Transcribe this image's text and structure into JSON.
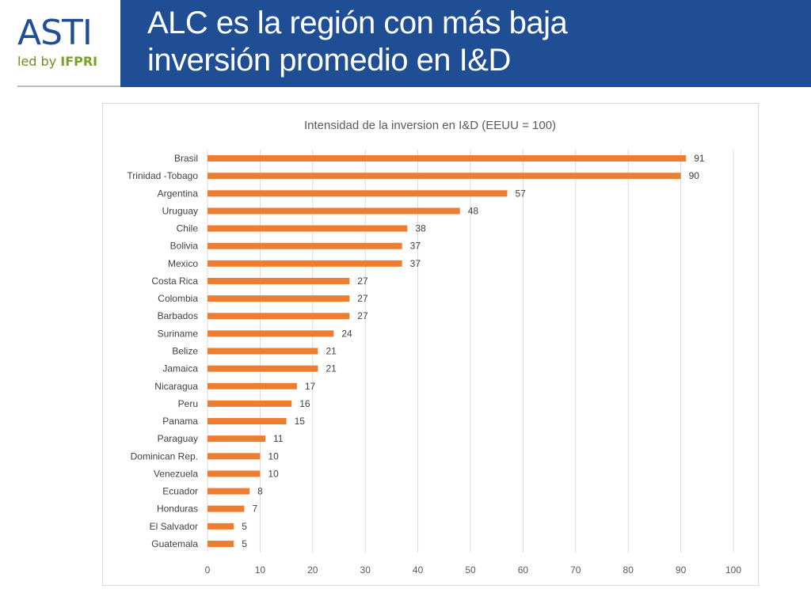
{
  "logo": {
    "main": "ASTI",
    "led_by": "led by ",
    "brand": "IFPRI"
  },
  "header": {
    "title_line1": "ALC es la región con más baja",
    "title_line2": "inversión promedio en I&D",
    "background": "#1f4e95"
  },
  "chart_data": {
    "type": "bar",
    "orientation": "horizontal",
    "title": "Intensidad de la inversion en I&D (EEUU = 100)",
    "categories": [
      "Brasil",
      "Trinidad -Tobago",
      "Argentina",
      "Uruguay",
      "Chile",
      "Bolivia",
      "Mexico",
      "Costa Rica",
      "Colombia",
      "Barbados",
      "Suriname",
      "Belize",
      "Jamaica",
      "Nicaragua",
      "Peru",
      "Panama",
      "Paraguay",
      "Dominican Rep.",
      "Venezuela",
      "Ecuador",
      "Honduras",
      "El Salvador",
      "Guatemala"
    ],
    "values": [
      91,
      90,
      57,
      48,
      38,
      37,
      37,
      27,
      27,
      27,
      24,
      21,
      21,
      17,
      16,
      15,
      11,
      10,
      10,
      8,
      7,
      5,
      5
    ],
    "data_labels": [
      "91",
      "90",
      "57",
      "48",
      "38",
      "37",
      "37",
      "27",
      "27",
      "27",
      "24",
      "21",
      "21",
      "17",
      "16",
      "15",
      "11",
      "10",
      "10",
      "8",
      "7",
      "5",
      "5"
    ],
    "xlim": [
      0,
      100
    ],
    "xticks": [
      "0",
      "10",
      "20",
      "30",
      "40",
      "50",
      "60",
      "70",
      "80",
      "90",
      "100"
    ],
    "xticks_values": [
      0,
      10,
      20,
      30,
      40,
      50,
      60,
      70,
      80,
      90,
      100
    ],
    "grid": true,
    "bar_color": "#ed7d31"
  }
}
